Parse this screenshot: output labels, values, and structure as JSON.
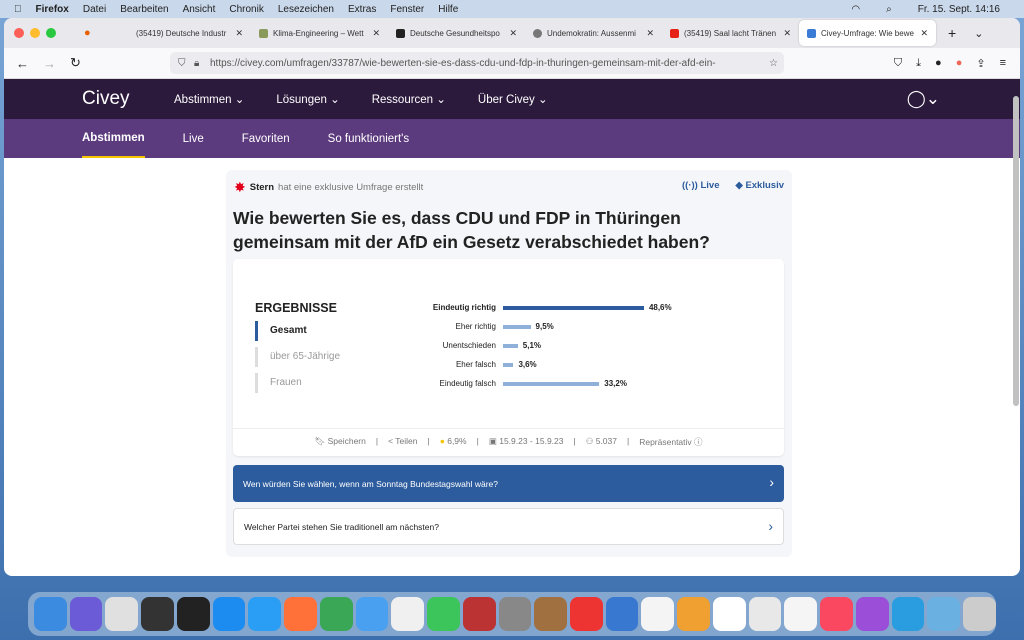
{
  "menubar": {
    "items": [
      "Firefox",
      "Datei",
      "Bearbeiten",
      "Ansicht",
      "Chronik",
      "Lesezeichen",
      "Extras",
      "Fenster",
      "Hilfe"
    ],
    "clock": "Fr. 15. Sept.  14:16"
  },
  "tabs": [
    {
      "label": "(35419) Deutsche Industr",
      "color": "#e62117"
    },
    {
      "label": "Klima-Engineering – Wett",
      "color": "#8a9a5b"
    },
    {
      "label": "Deutsche Gesundheitspo",
      "color": "#222"
    },
    {
      "label": "Undemokratin: Aussenmi",
      "color": "#777"
    },
    {
      "label": "(35419) Saal lacht Tränen",
      "color": "#e62117"
    },
    {
      "label": "Civey-Umfrage: Wie bewe",
      "color": "#3a7bd5"
    }
  ],
  "url": "https://civey.com/umfragen/33787/wie-bewerten-sie-es-dass-cdu-und-fdp-in-thuringen-gemeinsam-mit-der-afd-ein-",
  "site": {
    "logo": "Civey",
    "menu": [
      "Abstimmen ⌄",
      "Lösungen ⌄",
      "Ressourcen ⌄",
      "Über Civey ⌄"
    ],
    "subnav": [
      "Abstimmen",
      "Live",
      "Favoriten",
      "So funktioniert's"
    ]
  },
  "poll": {
    "source": "Stern",
    "source_text": "hat eine exklusive Umfrage erstellt",
    "live": "Live",
    "exclusive": "Exklusiv",
    "question": "Wie bewerten Sie es, dass CDU und FDP in Thüringen gemeinsam mit der AfD ein Gesetz verabschiedet haben?",
    "results_title": "ERGEBNISSE",
    "segments": [
      "Gesamt",
      "über 65-Jährige",
      "Frauen"
    ],
    "results": [
      {
        "label": "Eindeutig richtig",
        "value": 48.6,
        "text": "48,6%"
      },
      {
        "label": "Eher richtig",
        "value": 9.5,
        "text": "9,5%"
      },
      {
        "label": "Unentschieden",
        "value": 5.1,
        "text": "5,1%"
      },
      {
        "label": "Eher falsch",
        "value": 3.6,
        "text": "3,6%"
      },
      {
        "label": "Eindeutig falsch",
        "value": 33.2,
        "text": "33,2%"
      }
    ],
    "footer": {
      "save": "Speichern",
      "share": "Teilen",
      "error": "6,9%",
      "dates": "15.9.23 - 15.9.23",
      "participants": "5.037",
      "representative": "Repräsentativ"
    }
  },
  "next_questions": [
    "Wen würden Sie wählen, wenn am Sonntag Bundestagswahl wäre?",
    "Welcher Partei stehen Sie traditionell am nächsten?"
  ],
  "colors": {
    "nav": "#2c1a3d",
    "subnav": "#5c3a7e",
    "accent": "#2c5c9e",
    "bar": "#8fb1d9"
  }
}
